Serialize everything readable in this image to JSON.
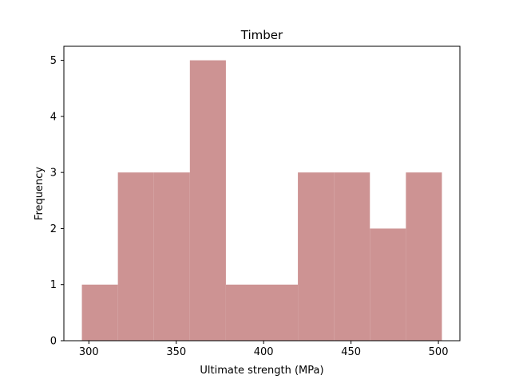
{
  "chart_data": {
    "type": "bar",
    "title": "Timber",
    "xlabel": "Ultimate strength (MPa)",
    "ylabel": "Frequency",
    "bin_edges": [
      296.0,
      316.6,
      337.2,
      357.8,
      378.4,
      399.0,
      419.6,
      440.2,
      460.8,
      481.4,
      502.0
    ],
    "values": [
      1,
      3,
      3,
      5,
      1,
      1,
      3,
      3,
      2,
      3
    ],
    "xlim": [
      285.7,
      512.3
    ],
    "ylim": [
      0,
      5.25
    ],
    "x_ticks": [
      300,
      350,
      400,
      450,
      500
    ],
    "y_ticks": [
      0,
      1,
      2,
      3,
      4,
      5
    ],
    "bar_color": "#cd9393",
    "grid": false,
    "legend": "none"
  }
}
